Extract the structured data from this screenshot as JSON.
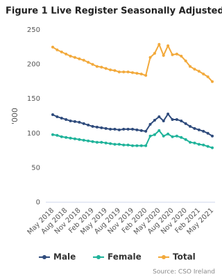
{
  "chart_data": {
    "type": "line",
    "title": "Figure 1 Live Register Seasonally Adjusted",
    "y_label": "'000",
    "source": "Source: CSO Ireland",
    "categories": [
      "May 2018",
      null,
      null,
      "Aug 2018",
      null,
      null,
      "Nov 2018",
      null,
      null,
      "Feb 2019",
      null,
      null,
      "May 2019",
      null,
      null,
      "Aug 2019",
      null,
      null,
      "Nov 2019",
      null,
      null,
      "Feb 2020",
      null,
      null,
      "May 2020",
      null,
      null,
      "Aug 2020",
      null,
      null,
      "Nov 2020",
      null,
      null,
      "Feb 2021",
      null,
      null,
      "May 2021"
    ],
    "series": [
      {
        "name": "Male",
        "color": "#2f4b7c",
        "values": [
          127,
          124,
          122,
          120,
          118,
          117,
          116,
          114,
          112,
          110,
          109,
          108,
          107,
          106,
          106,
          105,
          106,
          106,
          106,
          105,
          104,
          103,
          113,
          119,
          124,
          118,
          128,
          120,
          120,
          118,
          114,
          110,
          107,
          105,
          103,
          100,
          96
        ]
      },
      {
        "name": "Female",
        "color": "#1fb39a",
        "values": [
          98,
          97,
          95,
          94,
          93,
          92,
          91,
          90,
          89,
          88,
          87,
          87,
          86,
          85,
          84,
          84,
          83,
          83,
          82,
          82,
          82,
          82,
          96,
          98,
          104,
          96,
          99,
          95,
          96,
          94,
          91,
          87,
          86,
          84,
          83,
          81,
          79
        ]
      },
      {
        "name": "Total",
        "color": "#f2a93b",
        "values": [
          225,
          221,
          218,
          215,
          212,
          210,
          208,
          206,
          203,
          200,
          197,
          196,
          194,
          192,
          191,
          189,
          189,
          189,
          188,
          187,
          186,
          184,
          210,
          216,
          229,
          213,
          227,
          214,
          215,
          212,
          205,
          197,
          193,
          190,
          186,
          182,
          175
        ]
      }
    ],
    "ylim": [
      0,
      250
    ],
    "yticks": [
      0,
      50,
      100,
      150,
      200,
      250
    ],
    "grid": false,
    "legend": "bottom"
  }
}
